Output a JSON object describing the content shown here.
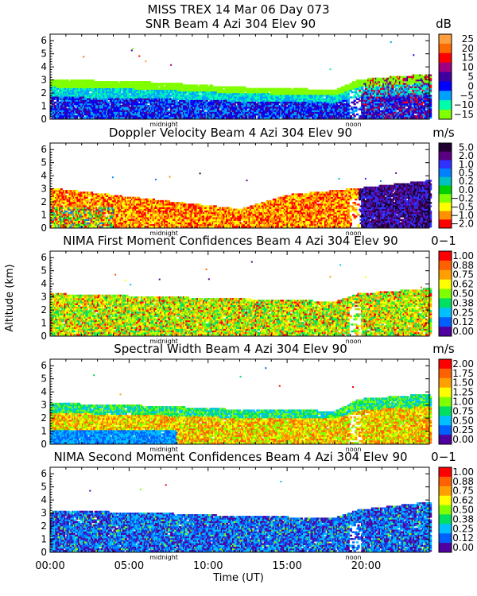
{
  "header": {
    "line1": "MISS TREX  14 Mar 06 Day 073",
    "x_axis_label": "Time (UT)",
    "y_axis_label": "Altitude (km)",
    "x_ticks": [
      "00:00",
      "05:00",
      "10:00",
      "15:00",
      "20:00"
    ],
    "midnight_label": "midnight",
    "noon_label": "noon"
  },
  "chart_data": [
    {
      "type": "heatmap",
      "title": "SNR Beam 4 Azi 304 Elev 90",
      "unit": "dB",
      "xlabel": "Time (UT)",
      "ylabel": "Altitude (km)",
      "xlim": [
        0,
        24
      ],
      "ylim": [
        0,
        6.5
      ],
      "yticks": [
        "0",
        "1",
        "2",
        "3",
        "4",
        "5",
        "6"
      ],
      "colorbar_labels": [
        "25",
        "20",
        "15",
        "10",
        "5",
        "0",
        "−5",
        "−10",
        "−15"
      ],
      "colors": [
        "#ffa040",
        "#ff6a00",
        "#ff0000",
        "#a0007f",
        "#3f00a0",
        "#0000ff",
        "#00a0ff",
        "#00ffaa",
        "#80ff00"
      ],
      "signal_top_km": [
        [
          0,
          3.0
        ],
        [
          6,
          2.8
        ],
        [
          12,
          2.4
        ],
        [
          18,
          2.2
        ],
        [
          19.5,
          3.0
        ],
        [
          24,
          3.4
        ]
      ]
    },
    {
      "type": "heatmap",
      "title": "Doppler Velocity Beam 4 Azi 304 Elev 90",
      "unit": "m/s",
      "xlabel": "Time (UT)",
      "ylabel": "Altitude (km)",
      "xlim": [
        0,
        24
      ],
      "ylim": [
        0,
        6.5
      ],
      "yticks": [
        "0",
        "1",
        "2",
        "3",
        "4",
        "5",
        "6"
      ],
      "colorbar_labels": [
        "5.0",
        "2.0",
        "1.0",
        "0.5",
        "0.2",
        "0.0",
        "−0.2",
        "−0.5",
        "−1.0",
        "−2.0"
      ],
      "colors": [
        "#200030",
        "#5a0080",
        "#3030ff",
        "#0080ff",
        "#00c0c0",
        "#00d000",
        "#80ff00",
        "#ffff00",
        "#ff9000",
        "#ff0000"
      ],
      "signal_top_km": [
        [
          0,
          3.0
        ],
        [
          6,
          2.2
        ],
        [
          12,
          1.4
        ],
        [
          15,
          2.5
        ],
        [
          19.5,
          3.0
        ],
        [
          24,
          3.6
        ]
      ]
    },
    {
      "type": "heatmap",
      "title": "NIMA First Moment Confidences Beam 4 Azi 304 Elev 90",
      "unit": "0−1",
      "xlabel": "Time (UT)",
      "ylabel": "Altitude (km)",
      "xlim": [
        0,
        24
      ],
      "ylim": [
        0,
        6.5
      ],
      "yticks": [
        "0",
        "1",
        "2",
        "3",
        "4",
        "5",
        "6"
      ],
      "colorbar_labels": [
        "1.00",
        "0.88",
        "0.75",
        "0.62",
        "0.50",
        "0.38",
        "0.25",
        "0.12",
        "0.00"
      ],
      "colors": [
        "#ff0000",
        "#ff6000",
        "#ffa000",
        "#ffff00",
        "#80ff00",
        "#00e060",
        "#00c0ff",
        "#0060ff",
        "#5000a0"
      ],
      "signal_top_km": [
        [
          0,
          3.2
        ],
        [
          6,
          3.0
        ],
        [
          12,
          2.8
        ],
        [
          18,
          2.6
        ],
        [
          19.5,
          3.2
        ],
        [
          24,
          3.6
        ]
      ]
    },
    {
      "type": "heatmap",
      "title": "Spectral Width Beam 4 Azi 304 Elev 90",
      "unit": "m/s",
      "xlabel": "Time (UT)",
      "ylabel": "Altitude (km)",
      "xlim": [
        0,
        24
      ],
      "ylim": [
        0,
        6.5
      ],
      "yticks": [
        "0",
        "1",
        "2",
        "3",
        "4",
        "5",
        "6"
      ],
      "colorbar_labels": [
        "2.00",
        "1.75",
        "1.50",
        "1.25",
        "1.00",
        "0.75",
        "0.50",
        "0.25",
        "0.00"
      ],
      "colors": [
        "#ff0000",
        "#ff6000",
        "#ffa000",
        "#ffff00",
        "#80ff00",
        "#00e060",
        "#00c0ff",
        "#0060ff",
        "#5000a0"
      ],
      "signal_top_km": [
        [
          0,
          3.1
        ],
        [
          6,
          2.9
        ],
        [
          12,
          2.6
        ],
        [
          18,
          2.5
        ],
        [
          19.5,
          3.4
        ],
        [
          24,
          3.8
        ]
      ]
    },
    {
      "type": "heatmap",
      "title": "NIMA Second Moment Confidences Beam 4 Azi 304 Elev 90",
      "unit": "0−1",
      "xlabel": "Time (UT)",
      "ylabel": "Altitude (km)",
      "xlim": [
        0,
        24
      ],
      "ylim": [
        0,
        6.5
      ],
      "yticks": [
        "0",
        "1",
        "2",
        "3",
        "4",
        "5",
        "6"
      ],
      "colorbar_labels": [
        "1.00",
        "0.88",
        "0.75",
        "0.62",
        "0.50",
        "0.38",
        "0.25",
        "0.12",
        "0.00"
      ],
      "colors": [
        "#ff0000",
        "#ff6000",
        "#ffa000",
        "#ffff00",
        "#80ff00",
        "#00e060",
        "#00c0ff",
        "#0060ff",
        "#5000a0"
      ],
      "signal_top_km": [
        [
          0,
          3.1
        ],
        [
          6,
          3.0
        ],
        [
          12,
          2.7
        ],
        [
          18,
          2.6
        ],
        [
          19.5,
          3.2
        ],
        [
          24,
          3.8
        ]
      ]
    }
  ]
}
